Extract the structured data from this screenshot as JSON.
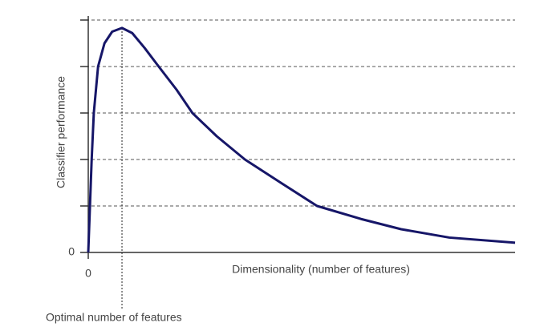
{
  "chart_data": {
    "type": "line",
    "ylabel": "Classifier performance",
    "xlabel": "Dimensionality (number of features)",
    "annotation": {
      "text": "Optimal number of features",
      "x": 7.9
    },
    "xlim": [
      0,
      100
    ],
    "ylim": [
      0,
      5
    ],
    "xticks": [
      0
    ],
    "yticks": [
      0
    ],
    "ygrid": [
      1,
      2,
      3,
      4,
      5
    ],
    "grid": true,
    "series": [
      {
        "color": "#161668",
        "x": [
          0,
          0.4,
          0.8,
          1.3,
          2.3,
          3.8,
          5.6,
          7.9,
          10.3,
          13.2,
          16.5,
          20.7,
          24.4,
          30.1,
          36.7,
          45.1,
          53.6,
          63.9,
          73.3,
          84.6,
          100
        ],
        "values": [
          0,
          1,
          2,
          3,
          4,
          4.5,
          4.75,
          4.83,
          4.72,
          4.4,
          4,
          3.5,
          3,
          2.5,
          2,
          1.5,
          1,
          0.72,
          0.5,
          0.32,
          0.21
        ]
      }
    ]
  }
}
